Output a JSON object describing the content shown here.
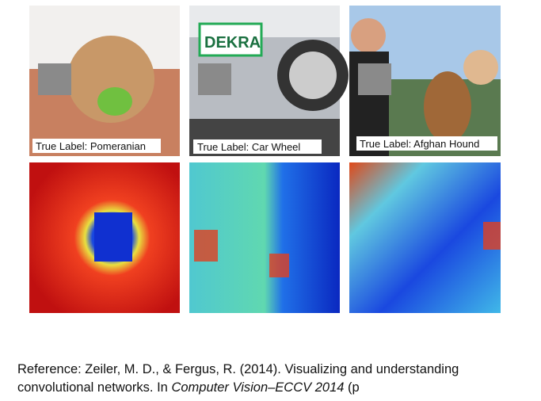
{
  "panels": [
    {
      "label": "True Label: Pomeranian"
    },
    {
      "label": "True Label: Car Wheel"
    },
    {
      "label": "True Label: Afghan Hound"
    }
  ],
  "reference": {
    "text": "Reference: Zeiler, M. D., & Fergus, R. (2014). Visualizing and understanding convolutional networks. In ",
    "venue": "Computer Vision–ECCV 2014",
    "tail": " (p"
  }
}
